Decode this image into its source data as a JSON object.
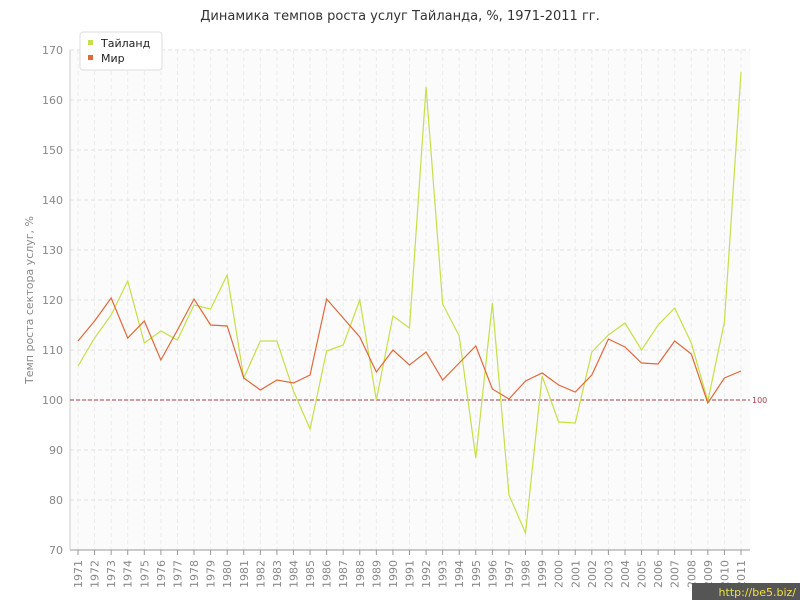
{
  "chart_data": {
    "type": "line",
    "title": "Динамика темпов роста услуг Тайланда, %, 1971-2011 гг.",
    "y_label": "Темп роста сектора услуг, %",
    "watermark": "http://be5.biz/",
    "categories": [
      "1971",
      "1972",
      "1973",
      "1974",
      "1975",
      "1976",
      "1977",
      "1978",
      "1979",
      "1980",
      "1981",
      "1982",
      "1983",
      "1984",
      "1985",
      "1986",
      "1987",
      "1988",
      "1989",
      "1990",
      "1991",
      "1992",
      "1993",
      "1994",
      "1995",
      "1996",
      "1997",
      "1998",
      "1999",
      "2000",
      "2001",
      "2002",
      "2003",
      "2004",
      "2005",
      "2006",
      "2007",
      "2008",
      "2009",
      "2010",
      "2011"
    ],
    "series": [
      {
        "name": "Тайланд",
        "color": "#c5e04a",
        "values": [
          106.8,
          112.4,
          117,
          123.8,
          111.4,
          113.8,
          112,
          119,
          118.2,
          125,
          104.4,
          111.8,
          111.8,
          101.8,
          94.2,
          109.8,
          111,
          120,
          100,
          116.8,
          114.4,
          162.6,
          119.2,
          112.8,
          88.4,
          119.4,
          81,
          73.4,
          104.8,
          95.6,
          95.4,
          109.6,
          113,
          115.4,
          110,
          115,
          118.4,
          111.4,
          99.8,
          115.6,
          165.6
        ]
      },
      {
        "name": "Мир",
        "color": "#e0693a",
        "values": [
          111.8,
          115.8,
          120.4,
          112.4,
          115.8,
          108,
          114,
          120.2,
          115,
          114.8,
          104.4,
          102,
          104,
          103.4,
          105,
          120.2,
          116.4,
          112.6,
          105.6,
          110,
          107,
          109.6,
          104,
          107.4,
          110.8,
          102.2,
          100.2,
          103.8,
          105.4,
          103,
          101.6,
          105,
          112.2,
          110.6,
          107.4,
          107.2,
          111.8,
          109.2,
          99.4,
          104.4,
          105.8
        ]
      }
    ],
    "reference_line": 100,
    "ylim": [
      70,
      170
    ],
    "yticks": [
      70,
      80,
      90,
      100,
      110,
      120,
      130,
      140,
      150,
      160,
      170
    ],
    "grid": true,
    "legend": "top-left"
  }
}
